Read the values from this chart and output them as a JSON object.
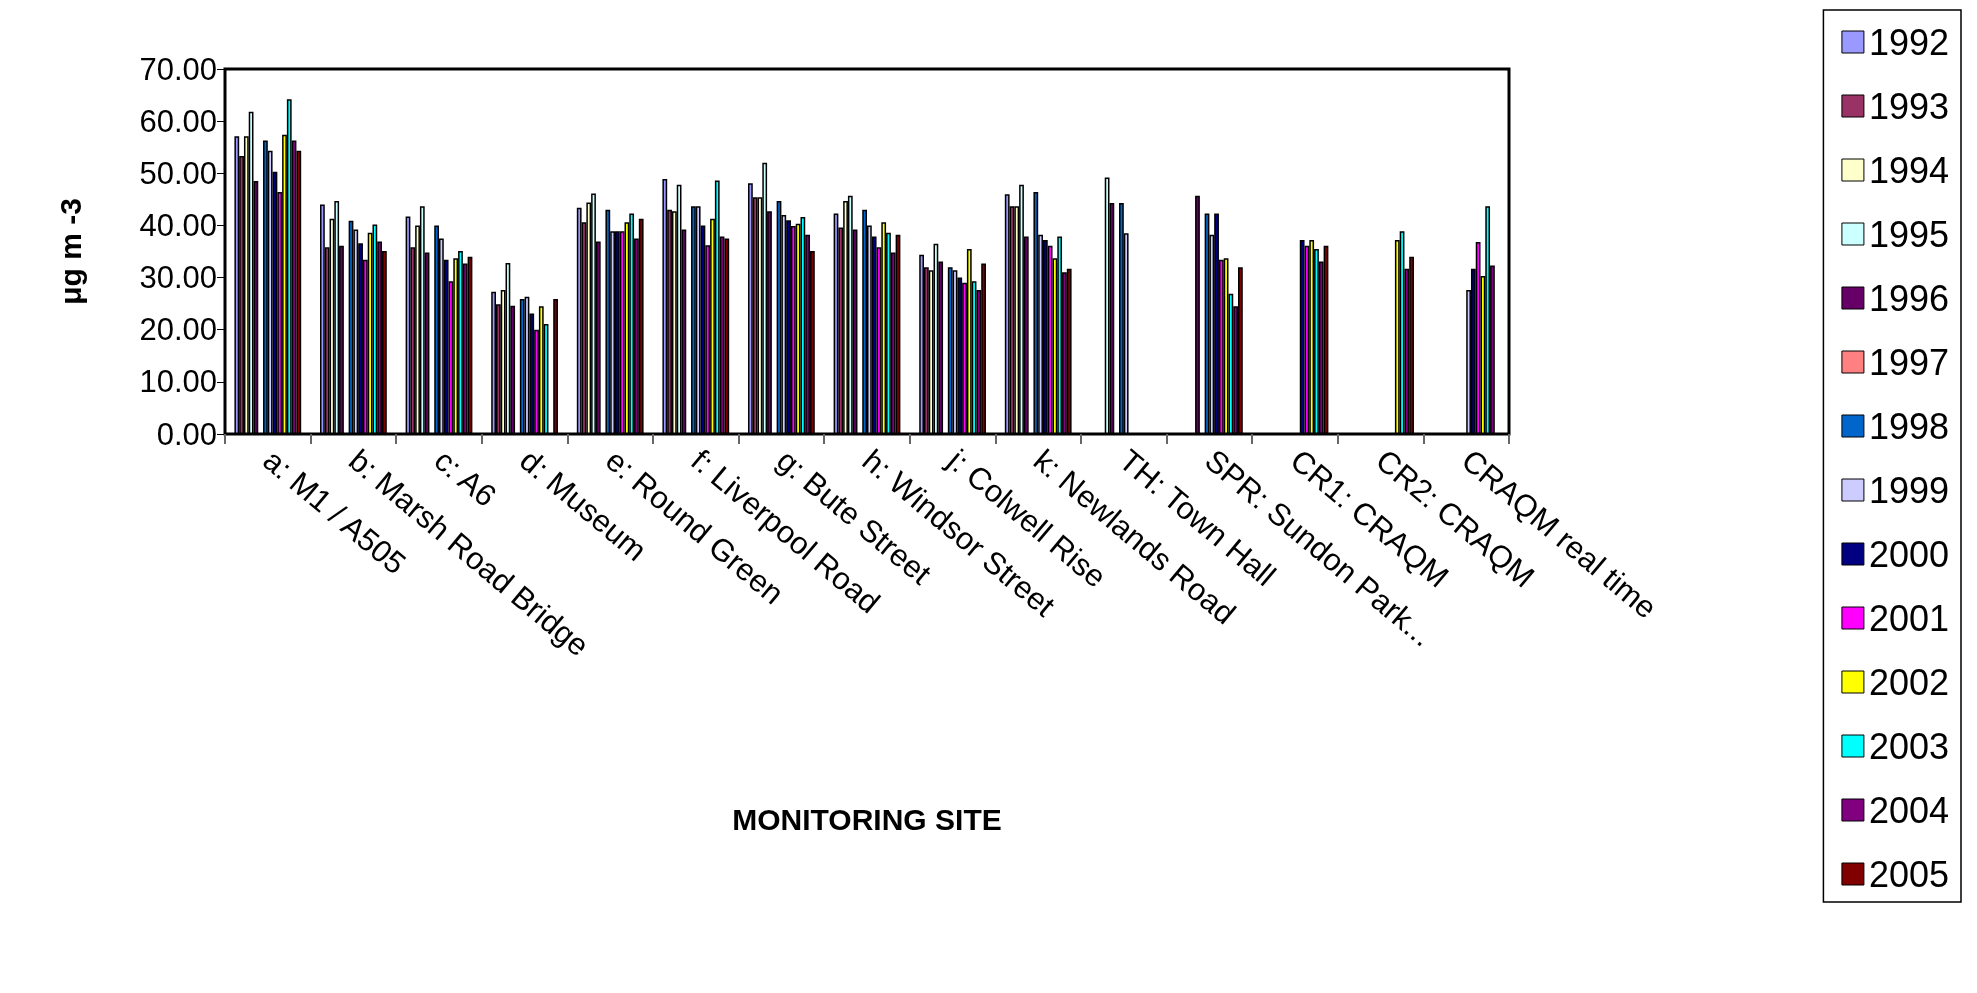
{
  "chart_data": {
    "type": "bar",
    "xlabel": "MONITORING SITE",
    "ylabel": "μg m -3",
    "categories": [
      "a: M1 / A505",
      "b: Marsh Road Bridge",
      "c: A6",
      "d: Museum",
      "e: Round Green",
      "f: Liverpool Road",
      "g: Bute Street",
      "h: Windsor Street",
      "j: Colwell Rise",
      "k: Newlands Road",
      "TH: Town Hall",
      "SPR: Sundon Park...",
      "CR1: CRAQM",
      "CR2: CRAQM",
      "CRAQM real time"
    ],
    "ylim": [
      0,
      70
    ],
    "yticks": [
      {
        "value": 0,
        "label": "0.00"
      },
      {
        "value": 10,
        "label": "10.00"
      },
      {
        "value": 20,
        "label": "20.00"
      },
      {
        "value": 30,
        "label": "30.00"
      },
      {
        "value": 40,
        "label": "40.00"
      },
      {
        "value": 50,
        "label": "50.00"
      },
      {
        "value": 60,
        "label": "60.00"
      },
      {
        "value": 70,
        "label": "70.00"
      }
    ],
    "grid": false,
    "legend": "right",
    "series": [
      {
        "name": "1992",
        "color": "#9999ff",
        "values": [
          57.1,
          44.0,
          41.7,
          27.3,
          43.4,
          48.9,
          48.1,
          42.3,
          34.4,
          46.0,
          null,
          null,
          null,
          null,
          null
        ]
      },
      {
        "name": "1993",
        "color": "#993366",
        "values": [
          53.3,
          35.8,
          35.8,
          24.9,
          40.6,
          43.0,
          45.4,
          39.6,
          32.0,
          43.7,
          null,
          null,
          null,
          null,
          null
        ]
      },
      {
        "name": "1994",
        "color": "#ffffcc",
        "values": [
          57.1,
          41.3,
          40.0,
          27.6,
          44.4,
          42.7,
          45.4,
          44.7,
          31.4,
          43.7,
          null,
          null,
          null,
          null,
          null
        ]
      },
      {
        "name": "1995",
        "color": "#ccffff",
        "values": [
          61.8,
          44.7,
          43.7,
          32.8,
          46.1,
          47.8,
          52.0,
          45.7,
          36.5,
          47.8,
          49.2,
          null,
          null,
          null,
          null
        ]
      },
      {
        "name": "1996",
        "color": "#660066",
        "values": [
          48.5,
          36.1,
          34.8,
          24.6,
          36.9,
          39.2,
          42.7,
          39.2,
          33.1,
          37.9,
          44.3,
          45.7,
          null,
          null,
          null
        ]
      },
      {
        "name": "1997",
        "color": "#ff8080",
        "values": [
          null,
          null,
          null,
          null,
          null,
          null,
          null,
          null,
          null,
          null,
          null,
          null,
          null,
          null,
          null
        ]
      },
      {
        "name": "1998",
        "color": "#0066cc",
        "values": [
          56.3,
          40.9,
          40.0,
          25.9,
          43.0,
          43.7,
          44.7,
          43.0,
          32.0,
          46.4,
          44.3,
          42.3,
          null,
          null,
          null
        ]
      },
      {
        "name": "1999",
        "color": "#ccccff",
        "values": [
          54.3,
          39.2,
          37.5,
          26.3,
          38.9,
          43.7,
          42.0,
          40.0,
          31.4,
          38.2,
          38.5,
          38.2,
          null,
          null,
          27.6
        ]
      },
      {
        "name": "2000",
        "color": "#000080",
        "values": [
          50.3,
          36.6,
          33.4,
          23.1,
          38.9,
          40.0,
          41.0,
          37.9,
          30.0,
          37.2,
          null,
          42.3,
          37.2,
          null,
          31.7
        ]
      },
      {
        "name": "2001",
        "color": "#ff00ff",
        "values": [
          46.4,
          33.4,
          29.3,
          20.0,
          38.9,
          36.2,
          39.9,
          35.8,
          29.0,
          36.1,
          null,
          33.4,
          36.1,
          null,
          36.8
        ]
      },
      {
        "name": "2002",
        "color": "#ffff00",
        "values": [
          57.4,
          38.6,
          33.7,
          24.5,
          40.6,
          41.3,
          40.3,
          40.6,
          35.5,
          33.7,
          null,
          33.7,
          37.2,
          37.2,
          30.3
        ]
      },
      {
        "name": "2003",
        "color": "#00ffff",
        "values": [
          64.2,
          40.2,
          35.1,
          21.1,
          42.3,
          48.6,
          41.6,
          38.6,
          29.3,
          37.9,
          null,
          26.9,
          35.5,
          38.9,
          43.7
        ]
      },
      {
        "name": "2004",
        "color": "#800080",
        "values": [
          56.3,
          36.9,
          32.7,
          null,
          37.5,
          37.9,
          38.2,
          34.8,
          27.6,
          31.0,
          null,
          24.5,
          33.1,
          31.7,
          32.3
        ]
      },
      {
        "name": "2005",
        "color": "#800000",
        "values": [
          54.3,
          35.1,
          34.0,
          25.9,
          41.3,
          37.5,
          35.1,
          38.2,
          32.7,
          31.7,
          null,
          32.0,
          36.1,
          34.0,
          null
        ]
      }
    ]
  }
}
